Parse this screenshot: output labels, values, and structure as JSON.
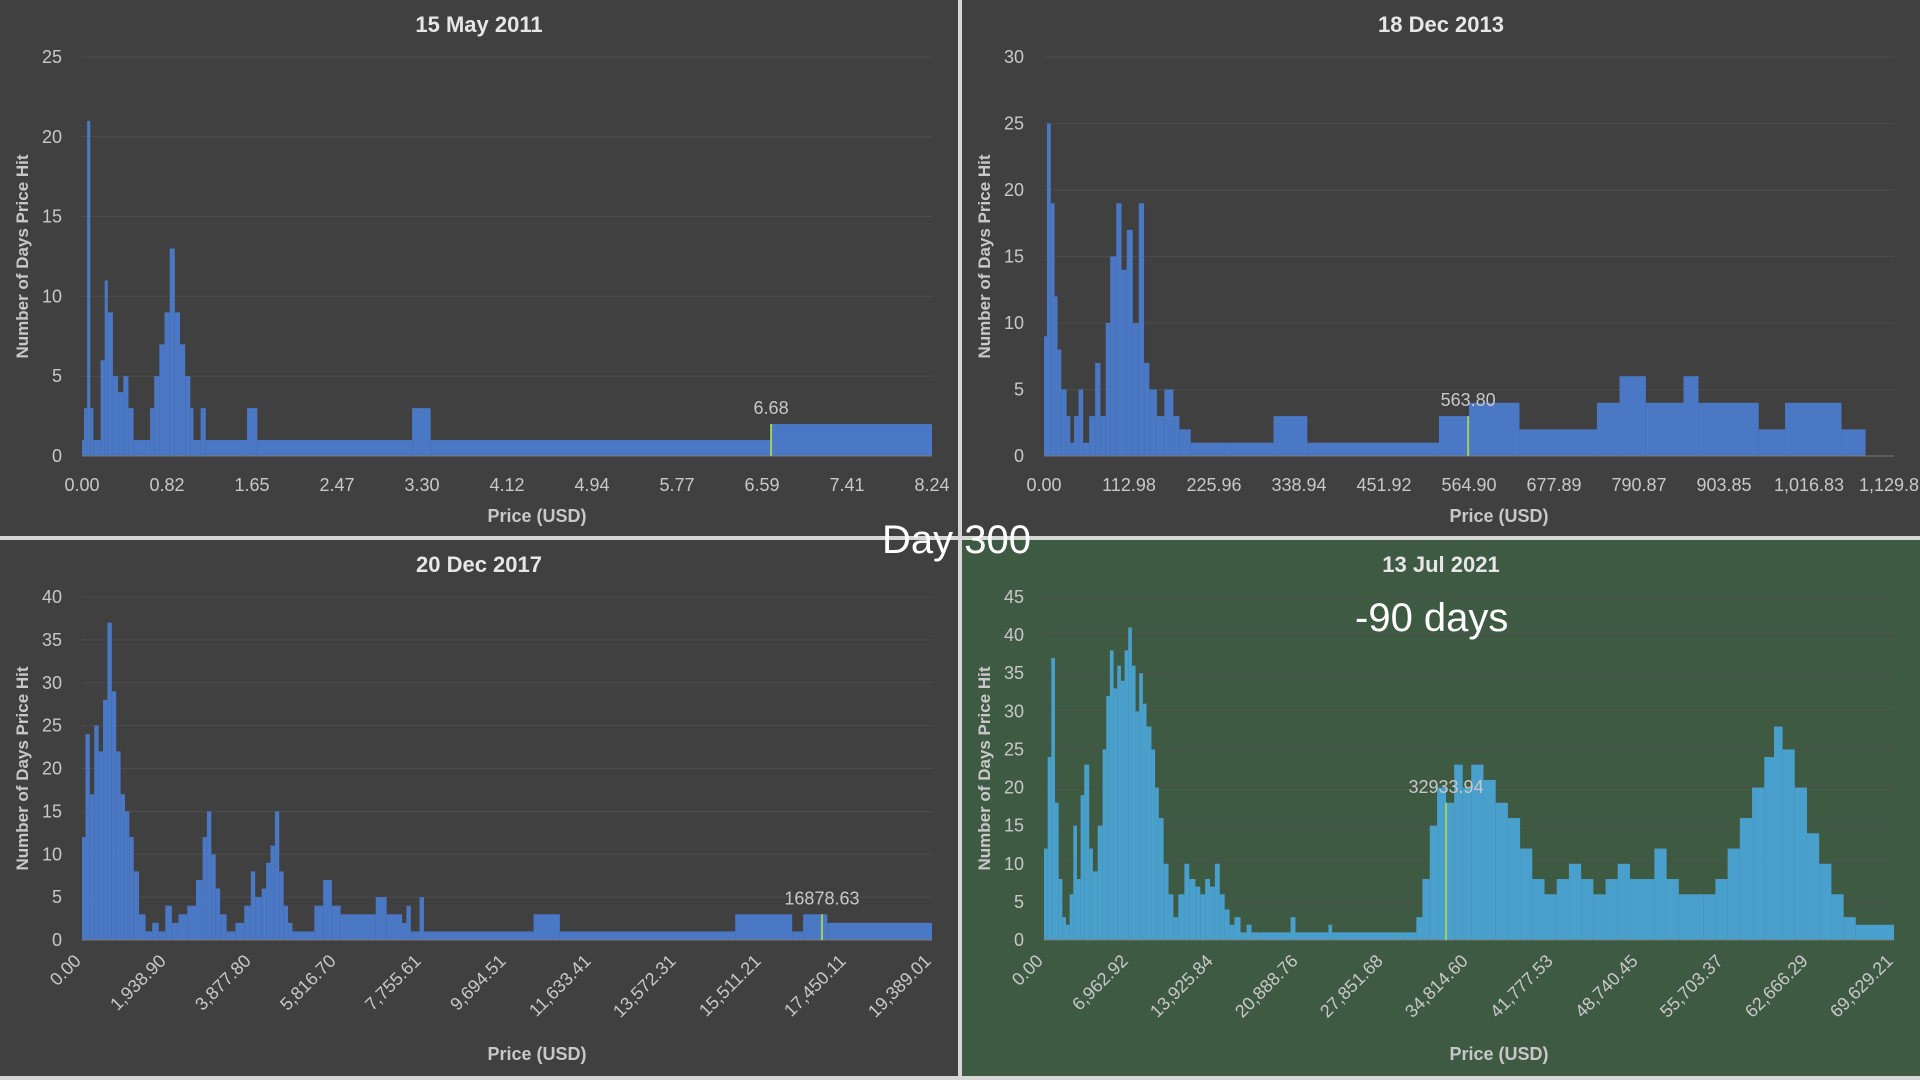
{
  "center_label": "Day 300",
  "colors": {
    "panel_bg": "#404040",
    "highlight_bg": "#3f5a43",
    "bar_blue": "#4a78c4",
    "bar_teal": "#4aa0cc",
    "marker": "#9fcf5e",
    "text": "#c8c8c8",
    "title": "#e6e6e6"
  },
  "chart_data": [
    {
      "type": "bar",
      "title": "15 May 2011",
      "xlabel": "Price (USD)",
      "ylabel": "Number of Days Price Hit",
      "xlim": [
        0,
        8.24
      ],
      "ylim": [
        0,
        25
      ],
      "yticks": [
        "0",
        "5",
        "10",
        "15",
        "20",
        "25"
      ],
      "xtick_labels": [
        "0.00",
        "0.82",
        "1.65",
        "2.47",
        "3.30",
        "4.12",
        "4.94",
        "5.77",
        "6.59",
        "7.41",
        "8.24"
      ],
      "rotate_xticks": false,
      "bar_color": "#4a78c4",
      "marker": {
        "x": 6.68,
        "y": 2,
        "label": "6.68"
      },
      "profile": [
        [
          0,
          1
        ],
        [
          0.02,
          3
        ],
        [
          0.05,
          21
        ],
        [
          0.08,
          3
        ],
        [
          0.11,
          1
        ],
        [
          0.18,
          6
        ],
        [
          0.22,
          11
        ],
        [
          0.25,
          9
        ],
        [
          0.3,
          5
        ],
        [
          0.35,
          4
        ],
        [
          0.4,
          5
        ],
        [
          0.45,
          3
        ],
        [
          0.5,
          1
        ],
        [
          0.62,
          1
        ],
        [
          0.66,
          3
        ],
        [
          0.7,
          5
        ],
        [
          0.75,
          7
        ],
        [
          0.8,
          9
        ],
        [
          0.85,
          13
        ],
        [
          0.9,
          9
        ],
        [
          0.95,
          7
        ],
        [
          1.0,
          5
        ],
        [
          1.05,
          3
        ],
        [
          1.08,
          1
        ],
        [
          1.15,
          3
        ],
        [
          1.2,
          1
        ],
        [
          1.6,
          3
        ],
        [
          1.7,
          1
        ],
        [
          3.2,
          3
        ],
        [
          3.38,
          1
        ],
        [
          6.68,
          2
        ],
        [
          8.24,
          2
        ]
      ]
    },
    {
      "type": "bar",
      "title": "18 Dec 2013",
      "xlabel": "Price (USD)",
      "ylabel": "Number of Days Price Hit",
      "xlim": [
        0,
        1129.81
      ],
      "ylim": [
        0,
        30
      ],
      "yticks": [
        "0",
        "5",
        "10",
        "15",
        "20",
        "25",
        "30"
      ],
      "xtick_labels": [
        "0.00",
        "112.98",
        "225.96",
        "338.94",
        "451.92",
        "564.90",
        "677.89",
        "790.87",
        "903.85",
        "1,016.83",
        "1,129.81"
      ],
      "rotate_xticks": false,
      "bar_color": "#4a78c4",
      "marker": {
        "x": 563.8,
        "y": 3,
        "label": "563.80"
      },
      "profile": [
        [
          0,
          9
        ],
        [
          4,
          25
        ],
        [
          9,
          19
        ],
        [
          14,
          12
        ],
        [
          18,
          8
        ],
        [
          23,
          5
        ],
        [
          30,
          3
        ],
        [
          35,
          1
        ],
        [
          40,
          3
        ],
        [
          46,
          5
        ],
        [
          52,
          1
        ],
        [
          60,
          3
        ],
        [
          68,
          7
        ],
        [
          75,
          3
        ],
        [
          82,
          10
        ],
        [
          88,
          15
        ],
        [
          96,
          19
        ],
        [
          103,
          14
        ],
        [
          110,
          17
        ],
        [
          118,
          10
        ],
        [
          126,
          19
        ],
        [
          133,
          7
        ],
        [
          140,
          5
        ],
        [
          150,
          3
        ],
        [
          160,
          5
        ],
        [
          172,
          3
        ],
        [
          180,
          2
        ],
        [
          195,
          1
        ],
        [
          240,
          1
        ],
        [
          305,
          3
        ],
        [
          350,
          1
        ],
        [
          525,
          3
        ],
        [
          565,
          4
        ],
        [
          632,
          2
        ],
        [
          735,
          4
        ],
        [
          765,
          6
        ],
        [
          800,
          4
        ],
        [
          850,
          6
        ],
        [
          870,
          4
        ],
        [
          950,
          2
        ],
        [
          985,
          4
        ],
        [
          1060,
          2
        ],
        [
          1092,
          2
        ]
      ]
    },
    {
      "type": "bar",
      "title": "20 Dec 2017",
      "xlabel": "Price (USD)",
      "ylabel": "Number of Days Price Hit",
      "xlim": [
        0,
        19389.01
      ],
      "ylim": [
        0,
        40
      ],
      "yticks": [
        "0",
        "5",
        "10",
        "15",
        "20",
        "25",
        "30",
        "35",
        "40"
      ],
      "xtick_labels": [
        "0.00",
        "1,938.90",
        "3,877.80",
        "5,816.70",
        "7,755.61",
        "9,694.51",
        "11,633.41",
        "13,572.31",
        "15,511.21",
        "17,450.11",
        "19,389.01"
      ],
      "rotate_xticks": true,
      "bar_color": "#4a78c4",
      "marker": {
        "x": 16878.63,
        "y": 3,
        "label": "16878.63"
      },
      "profile": [
        [
          0,
          12
        ],
        [
          80,
          24
        ],
        [
          180,
          17
        ],
        [
          280,
          25
        ],
        [
          380,
          22
        ],
        [
          480,
          28
        ],
        [
          580,
          37
        ],
        [
          680,
          29
        ],
        [
          780,
          22
        ],
        [
          880,
          17
        ],
        [
          980,
          15
        ],
        [
          1080,
          12
        ],
        [
          1180,
          8
        ],
        [
          1300,
          3
        ],
        [
          1450,
          1
        ],
        [
          1600,
          2
        ],
        [
          1750,
          1
        ],
        [
          1900,
          4
        ],
        [
          2050,
          2
        ],
        [
          2200,
          3
        ],
        [
          2400,
          4
        ],
        [
          2600,
          7
        ],
        [
          2750,
          12
        ],
        [
          2850,
          15
        ],
        [
          2950,
          10
        ],
        [
          3050,
          6
        ],
        [
          3150,
          3
        ],
        [
          3300,
          1
        ],
        [
          3500,
          2
        ],
        [
          3700,
          4
        ],
        [
          3850,
          8
        ],
        [
          3950,
          5
        ],
        [
          4100,
          6
        ],
        [
          4200,
          9
        ],
        [
          4300,
          11
        ],
        [
          4400,
          15
        ],
        [
          4500,
          8
        ],
        [
          4600,
          4
        ],
        [
          4700,
          2
        ],
        [
          4800,
          1
        ],
        [
          5300,
          4
        ],
        [
          5500,
          7
        ],
        [
          5700,
          4
        ],
        [
          5900,
          3
        ],
        [
          6700,
          5
        ],
        [
          6950,
          3
        ],
        [
          7300,
          2
        ],
        [
          7400,
          4
        ],
        [
          7500,
          1
        ],
        [
          7700,
          5
        ],
        [
          7800,
          1
        ],
        [
          10300,
          3
        ],
        [
          10900,
          1
        ],
        [
          14900,
          3
        ],
        [
          16200,
          1
        ],
        [
          16450,
          3
        ],
        [
          16878,
          3
        ],
        [
          17000,
          2
        ],
        [
          19389,
          2
        ]
      ]
    },
    {
      "type": "bar",
      "title": "13 Jul 2021",
      "xlabel": "Price (USD)",
      "ylabel": "Number of Days Price Hit",
      "xlim": [
        0,
        69629.21
      ],
      "ylim": [
        0,
        45
      ],
      "yticks": [
        "0",
        "5",
        "10",
        "15",
        "20",
        "25",
        "30",
        "35",
        "40",
        "45"
      ],
      "xtick_labels": [
        "0.00",
        "6,962.92",
        "13,925.84",
        "20,888.76",
        "27,851.68",
        "34,814.60",
        "41,777.53",
        "48,740.45",
        "55,703.37",
        "62,666.29",
        "69,629.21"
      ],
      "rotate_xticks": true,
      "bar_color": "#4aa0cc",
      "annotation": "-90 days",
      "marker": {
        "x": 32933.94,
        "y": 18,
        "label": "32933.94"
      },
      "profile": [
        [
          0,
          12
        ],
        [
          300,
          24
        ],
        [
          600,
          37
        ],
        [
          900,
          18
        ],
        [
          1200,
          8
        ],
        [
          1500,
          3
        ],
        [
          1800,
          2
        ],
        [
          2100,
          6
        ],
        [
          2400,
          15
        ],
        [
          2700,
          8
        ],
        [
          3000,
          19
        ],
        [
          3300,
          23
        ],
        [
          3700,
          12
        ],
        [
          4000,
          9
        ],
        [
          4400,
          15
        ],
        [
          4800,
          25
        ],
        [
          5100,
          32
        ],
        [
          5400,
          38
        ],
        [
          5700,
          33
        ],
        [
          6000,
          36
        ],
        [
          6300,
          34
        ],
        [
          6600,
          38
        ],
        [
          6900,
          41
        ],
        [
          7200,
          36
        ],
        [
          7500,
          30
        ],
        [
          7800,
          35
        ],
        [
          8100,
          31
        ],
        [
          8400,
          28
        ],
        [
          8800,
          25
        ],
        [
          9100,
          20
        ],
        [
          9400,
          16
        ],
        [
          9800,
          10
        ],
        [
          10200,
          6
        ],
        [
          10600,
          3
        ],
        [
          11000,
          6
        ],
        [
          11500,
          10
        ],
        [
          11900,
          8
        ],
        [
          12400,
          7
        ],
        [
          12800,
          6
        ],
        [
          13200,
          8
        ],
        [
          13600,
          7
        ],
        [
          14000,
          10
        ],
        [
          14400,
          6
        ],
        [
          14800,
          4
        ],
        [
          15200,
          2
        ],
        [
          15600,
          3
        ],
        [
          16100,
          1
        ],
        [
          16600,
          2
        ],
        [
          17000,
          1
        ],
        [
          17600,
          1
        ],
        [
          20200,
          3
        ],
        [
          20600,
          1
        ],
        [
          23300,
          2
        ],
        [
          23600,
          1
        ],
        [
          29500,
          1
        ],
        [
          30500,
          3
        ],
        [
          31000,
          8
        ],
        [
          31600,
          15
        ],
        [
          32200,
          20
        ],
        [
          32933,
          18
        ],
        [
          33600,
          23
        ],
        [
          34300,
          20
        ],
        [
          35000,
          23
        ],
        [
          36000,
          21
        ],
        [
          37000,
          18
        ],
        [
          38000,
          16
        ],
        [
          39000,
          12
        ],
        [
          40000,
          8
        ],
        [
          41000,
          6
        ],
        [
          42000,
          8
        ],
        [
          43000,
          10
        ],
        [
          44000,
          8
        ],
        [
          45000,
          6
        ],
        [
          46000,
          8
        ],
        [
          47000,
          10
        ],
        [
          48000,
          8
        ],
        [
          50000,
          12
        ],
        [
          51000,
          8
        ],
        [
          52000,
          6
        ],
        [
          54000,
          6
        ],
        [
          55000,
          8
        ],
        [
          56000,
          12
        ],
        [
          57000,
          16
        ],
        [
          58000,
          20
        ],
        [
          59000,
          24
        ],
        [
          59800,
          28
        ],
        [
          60500,
          25
        ],
        [
          61500,
          20
        ],
        [
          62500,
          14
        ],
        [
          63500,
          10
        ],
        [
          64500,
          6
        ],
        [
          65500,
          3
        ],
        [
          66500,
          2
        ],
        [
          69629,
          2
        ]
      ]
    }
  ]
}
